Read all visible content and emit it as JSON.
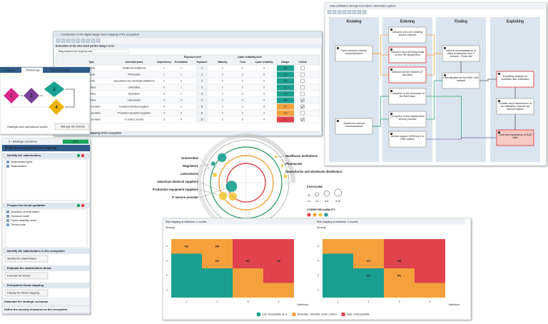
{
  "table_window": {
    "title": "Construction of the digital danger level mapping of the ecosystem",
    "section": "Evaluation of the interested parties danger level",
    "group_hint": "Drag columns here to group rows",
    "group_headers": [
      "Exposure level",
      "Cyber reliability level"
    ],
    "columns": [
      "Type",
      "Interested parts",
      "Dependency",
      "Penetration",
      "Exposure",
      "Maturity",
      "Trust",
      "Cyber reliability",
      "Danger",
      "Critical"
    ],
    "rows": [
      {
        "type": "Clients",
        "name": "Healthcare institutions",
        "values": [
          1,
          1,
          1,
          2,
          2,
          3
        ],
        "danger": 0.2,
        "danger_color": "#1a9e8f",
        "critical": false
      },
      {
        "type": "Clients",
        "name": "Pharmacies",
        "values": [
          1,
          1,
          1,
          2,
          2,
          3
        ],
        "danger": 0.2,
        "danger_color": "#1a9e8f",
        "critical": false
      },
      {
        "type": "Clients",
        "name": "Depositories and wholesale distributors",
        "values": [
          1,
          2,
          2,
          2,
          3,
          3
        ],
        "danger": 0.2,
        "danger_color": "#1a9e8f",
        "critical": false
      },
      {
        "type": "Partners",
        "name": "Universities",
        "values": [
          3,
          1,
          3,
          1,
          2,
          3
        ],
        "danger": 1.1,
        "danger_color": "#1a9e8f",
        "critical": false
      },
      {
        "type": "Partners",
        "name": "Regulators",
        "values": [
          3,
          1,
          3,
          2,
          3,
          4
        ],
        "danger": 0.4,
        "danger_color": "#1a9e8f",
        "critical": false
      },
      {
        "type": "Partners",
        "name": "Laboratories",
        "values": [
          3,
          3,
          9,
          2,
          3,
          4
        ],
        "danger": 0.8,
        "danger_color": "#1a9e8f",
        "critical": true
      },
      {
        "type": "Service providers",
        "name": "Industrial chemical suppliers",
        "values": [
          4,
          2,
          8,
          2,
          2,
          3
        ],
        "danger": 2.7,
        "danger_color": "#f5a03c",
        "critical": true
      },
      {
        "type": "Service providers",
        "name": "Production equipment suppliers",
        "values": [
          4,
          2,
          8,
          2,
          2,
          3
        ],
        "danger": 1.8,
        "danger_color": "#f5a03c",
        "critical": false
      },
      {
        "type": "Service providers",
        "name": "IT service provider",
        "values": [
          3,
          4,
          12,
          2,
          3,
          4
        ],
        "danger": 3.2,
        "danger_color": "#e0434c",
        "critical": true
      }
    ],
    "footer": "Initial digital danger mapping of the ecosystem"
  },
  "workshops_window": {
    "tabs": [
      "Projects",
      "Workshops",
      "Documentation"
    ],
    "steps": [
      "1",
      "2",
      "3",
      "4"
    ],
    "caption": "Strategic and operational cycles",
    "button": "Manage the revision"
  },
  "scenarios_panel": {
    "title": "3 - Strategic scenarios",
    "progress": "80%",
    "heading": "Build the ecosystem threat mapping",
    "sections": [
      {
        "title": "Identify the stakeholders",
        "items": [
          "Stakeholder types",
          "Stakeholders"
        ]
      },
      {
        "title": "Prepare the threat quotation",
        "items": [
          "Quotation criteria matrix",
          "Exposure scale",
          "Cyber reliability scale",
          "Threat scale"
        ]
      }
    ],
    "steps": [
      {
        "title": "Identify the stakeholders in the ecosystem",
        "button": "Identify the stakeholders"
      },
      {
        "title": "Evaluate the stakeholders threat",
        "button": "Evaluate the threat"
      },
      {
        "title": "Ecosystem threat mapping",
        "button": "Display the threat mapping"
      }
    ],
    "footer": [
      "Elaborate the strategic scenarios",
      "Define the security measures on the ecosystem"
    ]
  },
  "threat_map": {
    "exposure_title": "EXPOSURE",
    "exposure_labels": [
      "1-2",
      "3-4",
      "5-8",
      "9-12"
    ],
    "reliability_title": "CYBER RELIABILITY",
    "reliability_colors": [
      "#e0434c",
      "#f5a03c",
      "#f5c83c",
      "#1a9e8f"
    ]
  },
  "attack_window": {
    "title": "Data exfiltration directly from R&D's information system",
    "phases": [
      {
        "title": "Knowing",
        "nodes": [
          "Open sources external reconnaissance",
          "Advanced external reconnaissance"
        ]
      },
      {
        "title": "Entering",
        "nodes": [
          "Intrusion via a pre-existing access channel",
          "Intrusion via a phishing email on the HR department",
          "Intrusion via the channel (IT provider)",
          "Corruption of the personnel of the R&D team",
          "Corruption of the maintenance service provider",
          "Service support USB key in a R&D station"
        ]
      },
      {
        "title": "Finding",
        "nodes": [
          "Internal reconnaissance of office (endpoints) and IT network - Finds site",
          "Lateralisation for the R&D LAN network"
        ]
      },
      {
        "title": "Exploiting",
        "nodes": [
          "Exploiting analysis for collection and exfiltration",
          "Creation and maintenance of an exfiltration channel via Internet station",
          "Theft and exploitation of R&D data"
        ]
      }
    ]
  },
  "risk_window": {
    "y_label": "Severity",
    "x_label": "Likelihood",
    "ticks": [
      1,
      2,
      3,
      4
    ],
    "legend": [
      {
        "label": "Low: Acceptable as is",
        "color": "#1a9e8f"
      },
      {
        "label": "Moderate: Tolerable under control",
        "color": "#f5a03c"
      },
      {
        "label": "High: Unacceptable",
        "color": "#e0434c"
      }
    ],
    "matrices": [
      {
        "title": "Risk mapping at milestone: 1 months",
        "zones": [
          [
            0,
            0,
            1,
            1
          ],
          [
            0,
            0,
            1,
            2
          ],
          [
            0,
            1,
            2,
            2
          ],
          [
            1,
            1,
            2,
            2
          ]
        ],
        "risks": [
          {
            "name": "R2",
            "likelihood": 1,
            "severity": 4
          },
          {
            "name": "R4",
            "likelihood": 2,
            "severity": 4
          },
          {
            "name": "R3",
            "likelihood": 2,
            "severity": 3
          },
          {
            "name": "R1",
            "likelihood": 3,
            "severity": 3
          },
          {
            "name": "R5",
            "likelihood": 4,
            "severity": 3
          }
        ]
      },
      {
        "title": "Risk mapping at milestone: 3 months",
        "zones": [
          [
            0,
            0,
            1,
            1
          ],
          [
            0,
            0,
            1,
            2
          ],
          [
            0,
            1,
            2,
            2
          ],
          [
            1,
            1,
            2,
            2
          ]
        ],
        "risks": [
          {
            "name": "R2",
            "likelihood": 2,
            "severity": 3
          },
          {
            "name": "R5",
            "likelihood": 3,
            "severity": 3
          },
          {
            "name": "R3",
            "likelihood": 2,
            "severity": 2
          },
          {
            "name": "R1",
            "likelihood": 3,
            "severity": 2
          }
        ]
      }
    ]
  }
}
